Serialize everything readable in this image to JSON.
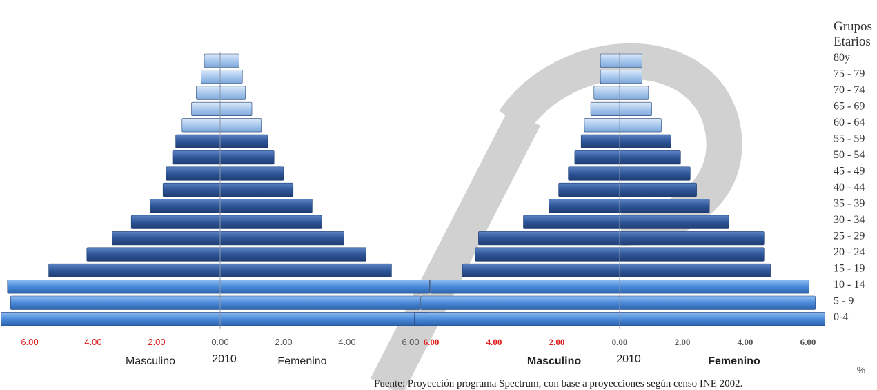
{
  "age_groups_header": [
    "Grupos",
    "Etarios"
  ],
  "percent_label": "%",
  "source_note": "Fuente: Proyección programa Spectrum,  con base a proyecciones según censo INE 2002.",
  "colors": {
    "bar_dark": "#2f5597",
    "bar_mid": "#3f73c2",
    "bar_bright": "#5b9be6",
    "bar_light": "#a9c8ee",
    "tick_red": "#e02020",
    "tick_gray": "#555555",
    "axis_line": "#8a97a8",
    "watermark": "#c8c8c8"
  },
  "chart_data": [
    {
      "type": "bar",
      "orientation": "horizontal",
      "subtype": "population-pyramid",
      "title": "",
      "xlabel_left": "Masculino",
      "xlabel_center": "2010",
      "xlabel_right": "Femenino",
      "x_ticks": [
        "6.00",
        "4.00",
        "2.00",
        "0.00",
        "2.00",
        "4.00",
        "6.00"
      ],
      "xlim": [
        -7,
        7
      ],
      "categories": [
        "0-4",
        "5 - 9",
        "10 - 14",
        "15 - 19",
        "20 - 24",
        "25 - 29",
        "30 - 34",
        "35 - 39",
        "40 - 44",
        "45 - 49",
        "50 - 54",
        "55 - 59",
        "60 - 64",
        "65 - 69",
        "70 - 74",
        "75 - 79",
        "80y +"
      ],
      "series": [
        {
          "name": "Masculino",
          "values": [
            6.9,
            6.6,
            6.7,
            5.4,
            4.2,
            3.4,
            2.8,
            2.2,
            1.8,
            1.7,
            1.5,
            1.4,
            1.2,
            0.9,
            0.75,
            0.6,
            0.5
          ]
        },
        {
          "name": "Femenino",
          "values": [
            6.6,
            6.3,
            6.6,
            5.4,
            4.6,
            3.9,
            3.2,
            2.9,
            2.3,
            2.0,
            1.7,
            1.5,
            1.3,
            1.0,
            0.8,
            0.7,
            0.6
          ]
        }
      ]
    },
    {
      "type": "bar",
      "orientation": "horizontal",
      "subtype": "population-pyramid",
      "title": "",
      "xlabel_left": "Masculino",
      "xlabel_center": "2010",
      "xlabel_right": "Femenino",
      "x_ticks": [
        "6.00",
        "4.00",
        "2.00",
        "0.00",
        "2.00",
        "4.00",
        "6.00"
      ],
      "xlim": [
        -6.5,
        6.5
      ],
      "categories": [
        "0-4",
        "5 - 9",
        "10 - 14",
        "15 - 19",
        "20 - 24",
        "25 - 29",
        "30 - 34",
        "35 - 39",
        "40 - 44",
        "45 - 49",
        "50 - 54",
        "55 - 59",
        "60 - 64",
        "65 - 69",
        "70 - 74",
        "75 - 79",
        "80y +"
      ],
      "series": [
        {
          "name": "Masculino",
          "values": [
            6.4,
            6.2,
            5.9,
            4.9,
            4.5,
            4.4,
            3.0,
            2.2,
            1.9,
            1.6,
            1.4,
            1.2,
            1.1,
            0.9,
            0.8,
            0.6,
            0.6
          ]
        },
        {
          "name": "Femenino",
          "values": [
            6.4,
            6.1,
            5.9,
            4.7,
            4.5,
            4.5,
            3.4,
            2.8,
            2.4,
            2.2,
            1.9,
            1.6,
            1.3,
            1.0,
            0.9,
            0.7,
            0.7
          ]
        }
      ]
    }
  ]
}
